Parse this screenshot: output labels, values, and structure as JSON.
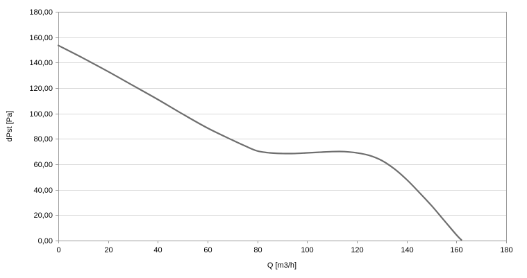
{
  "chart_data": {
    "type": "line",
    "title": "",
    "xlabel": "Q [m3/h]",
    "ylabel": "dPst [Pa]",
    "xlim": [
      0,
      180
    ],
    "ylim": [
      0,
      180
    ],
    "grid": "horizontal",
    "legend": "none",
    "x_ticks": [
      0,
      20,
      40,
      60,
      80,
      100,
      120,
      140,
      160,
      180
    ],
    "y_ticks": [
      0,
      20,
      40,
      60,
      80,
      100,
      120,
      140,
      160,
      180
    ],
    "x_tick_labels": [
      "0",
      "20",
      "40",
      "60",
      "80",
      "100",
      "120",
      "140",
      "160",
      "180"
    ],
    "y_tick_labels": [
      "0,00",
      "20,00",
      "40,00",
      "60,00",
      "80,00",
      "100,00",
      "120,00",
      "140,00",
      "160,00",
      "180,00"
    ],
    "series": [
      {
        "name": "dPst",
        "x": [
          0,
          10,
          20,
          30,
          40,
          50,
          60,
          70,
          75,
          80,
          85,
          90,
          95,
          100,
          105,
          110,
          115,
          120,
          125,
          130,
          135,
          140,
          145,
          150,
          155,
          160,
          162
        ],
        "y": [
          153.5,
          143.5,
          133,
          122,
          111,
          99.5,
          88.5,
          79,
          74.5,
          70.5,
          69,
          68.5,
          68.5,
          69,
          69.5,
          70,
          70,
          69,
          67,
          63,
          56.5,
          48,
          38,
          27.5,
          16,
          4.5,
          0.5
        ]
      }
    ],
    "colors": {
      "line": "#6e6e6e",
      "grid": "#d9d9d9",
      "axis": "#9a9a9a",
      "text": "#000000",
      "background": "#ffffff"
    }
  }
}
